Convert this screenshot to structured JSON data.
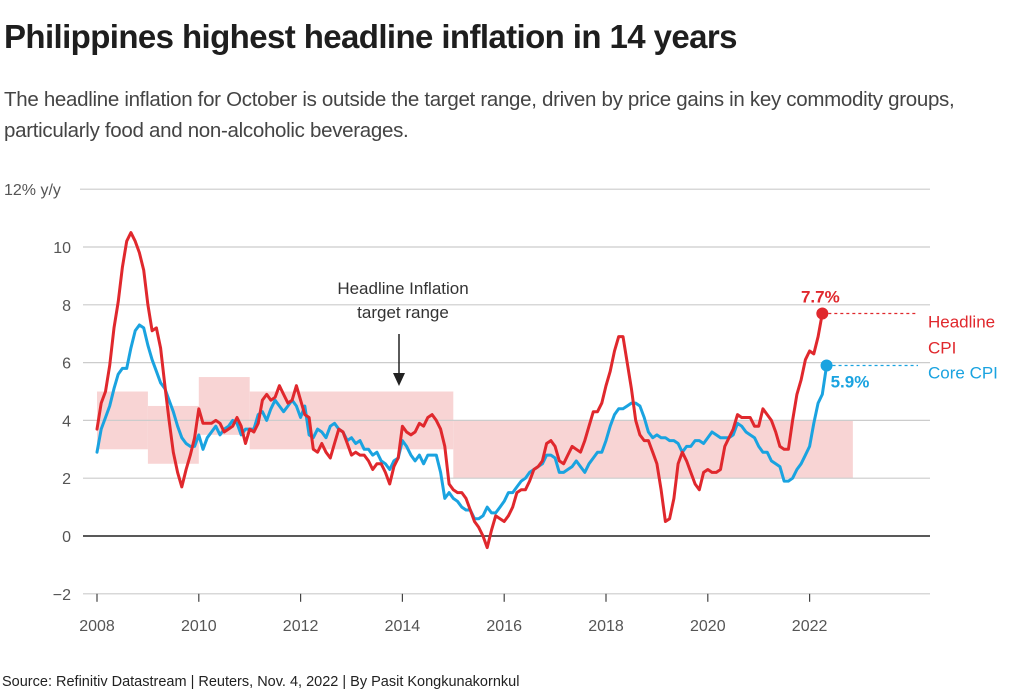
{
  "header": {
    "title": "Philippines highest headline inflation in 14 years",
    "subtitle": "The headline inflation for October is outside the target range, driven by price gains in key commodity groups, particularly food and non-alcoholic beverages."
  },
  "footer": {
    "source": "Source: Refinitiv Datastream | Reuters, Nov. 4, 2022 | By Pasit Kongkunakornkul"
  },
  "colors": {
    "headline": "#e0282d",
    "core": "#1aa3e0",
    "band": "#f8d4d4",
    "grid": "#cccccc",
    "zero_line": "#222222",
    "annotation": "#333333"
  },
  "chart_data": {
    "type": "line",
    "title": "Philippines highest headline inflation in 14 years",
    "xlabel": "",
    "ylabel": "% y/y",
    "y_unit_label": "12% y/y",
    "ylim": [
      -2,
      12
    ],
    "xlim": [
      2008,
      2024
    ],
    "grid": true,
    "x_ticks": [
      2008,
      2010,
      2012,
      2014,
      2016,
      2018,
      2020,
      2022
    ],
    "y_ticks": [
      -2,
      0,
      2,
      4,
      6,
      8,
      10,
      12
    ],
    "y_tick_labels": [
      "−2",
      "0",
      "2",
      "4",
      "6",
      "8",
      "10",
      "12% y/y"
    ],
    "legend_placement": "right",
    "annotation": {
      "line1": "Headline Inflation",
      "line2": "target range",
      "arrow_target_x": 2014,
      "arrow_target_y": 5
    },
    "target_bands": [
      {
        "from": 2008.0,
        "to": 2009.0,
        "low": 3.0,
        "high": 5.0
      },
      {
        "from": 2009.0,
        "to": 2010.0,
        "low": 2.5,
        "high": 4.5
      },
      {
        "from": 2010.0,
        "to": 2011.0,
        "low": 3.5,
        "high": 5.5
      },
      {
        "from": 2011.0,
        "to": 2015.0,
        "low": 3.0,
        "high": 5.0
      },
      {
        "from": 2015.0,
        "to": 2022.85,
        "low": 2.0,
        "high": 4.0
      }
    ],
    "series": [
      {
        "name": "Headline CPI",
        "label_line1": "Headline",
        "label_line2": "CPI",
        "end_value_label": "7.7%",
        "end_value": 7.7,
        "start": 2008.0,
        "step": 0.0833333,
        "values": [
          3.7,
          4.6,
          5.0,
          5.9,
          7.2,
          8.1,
          9.3,
          10.2,
          10.5,
          10.2,
          9.8,
          9.2,
          8.0,
          7.1,
          7.2,
          6.5,
          5.2,
          4.0,
          2.9,
          2.2,
          1.7,
          2.3,
          2.8,
          3.4,
          4.4,
          3.9,
          3.9,
          3.9,
          4.0,
          3.9,
          3.6,
          3.7,
          3.8,
          4.1,
          3.8,
          3.2,
          3.7,
          3.6,
          3.9,
          4.7,
          4.9,
          4.7,
          4.8,
          5.2,
          4.9,
          4.6,
          4.7,
          5.2,
          4.7,
          4.2,
          4.1,
          3.0,
          2.9,
          3.2,
          2.9,
          2.7,
          3.2,
          3.7,
          3.6,
          3.2,
          2.8,
          2.9,
          2.8,
          2.8,
          2.6,
          2.3,
          2.5,
          2.5,
          2.2,
          1.8,
          2.4,
          2.7,
          3.8,
          3.6,
          3.5,
          3.6,
          3.9,
          3.8,
          4.1,
          4.2,
          4.0,
          3.7,
          3.1,
          1.8,
          1.6,
          1.5,
          1.5,
          1.3,
          0.9,
          0.5,
          0.3,
          0.0,
          -0.4,
          0.2,
          0.7,
          0.6,
          0.5,
          0.7,
          1.0,
          1.5,
          1.6,
          1.6,
          1.9,
          2.3,
          2.4,
          2.6,
          3.2,
          3.3,
          3.1,
          2.6,
          2.5,
          2.8,
          3.1,
          3.0,
          2.9,
          3.3,
          3.8,
          4.3,
          4.3,
          4.6,
          5.2,
          5.7,
          6.4,
          6.9,
          6.9,
          6.0,
          5.1,
          4.0,
          3.5,
          3.3,
          3.3,
          2.9,
          2.5,
          1.6,
          0.5,
          0.6,
          1.3,
          2.5,
          2.9,
          2.6,
          2.2,
          1.8,
          1.6,
          2.2,
          2.3,
          2.2,
          2.2,
          2.3,
          3.1,
          3.4,
          3.7,
          4.2,
          4.1,
          4.1,
          4.1,
          3.8,
          3.8,
          4.4,
          4.2,
          4.0,
          3.6,
          3.1,
          3.0,
          3.0,
          4.0,
          4.9,
          5.4,
          6.1,
          6.4,
          6.3,
          6.9,
          7.7
        ]
      },
      {
        "name": "Core CPI",
        "label_line1": "Core CPI",
        "end_value_label": "5.9%",
        "end_value": 5.9,
        "start": 2008.0,
        "step": 0.0833333,
        "values": [
          2.9,
          3.7,
          4.1,
          4.5,
          5.1,
          5.6,
          5.8,
          5.8,
          6.5,
          7.1,
          7.3,
          7.2,
          6.6,
          6.1,
          5.7,
          5.3,
          5.1,
          4.7,
          4.3,
          3.8,
          3.4,
          3.2,
          3.1,
          3.1,
          3.5,
          3.0,
          3.4,
          3.6,
          3.8,
          3.5,
          3.7,
          3.8,
          4.0,
          3.9,
          3.5,
          3.7,
          3.7,
          3.7,
          4.2,
          4.3,
          4.0,
          4.4,
          4.7,
          4.5,
          4.3,
          4.5,
          4.7,
          4.5,
          4.1,
          4.5,
          3.5,
          3.4,
          3.7,
          3.6,
          3.4,
          3.8,
          3.9,
          3.7,
          3.6,
          3.3,
          3.4,
          3.2,
          3.3,
          3.0,
          3.0,
          2.8,
          2.9,
          2.6,
          2.5,
          2.3,
          2.6,
          2.7,
          3.3,
          3.1,
          2.8,
          2.6,
          2.8,
          2.5,
          2.8,
          2.8,
          2.8,
          2.2,
          1.3,
          1.5,
          1.3,
          1.2,
          1.0,
          0.9,
          0.9,
          0.6,
          0.6,
          0.7,
          1.0,
          0.8,
          0.8,
          1.0,
          1.2,
          1.5,
          1.5,
          1.7,
          1.9,
          2.0,
          2.2,
          2.3,
          2.4,
          2.5,
          2.8,
          2.8,
          2.7,
          2.2,
          2.2,
          2.3,
          2.4,
          2.6,
          2.4,
          2.2,
          2.5,
          2.7,
          2.9,
          2.9,
          3.3,
          3.8,
          4.2,
          4.4,
          4.4,
          4.5,
          4.6,
          4.6,
          4.5,
          4.1,
          3.6,
          3.4,
          3.5,
          3.4,
          3.4,
          3.3,
          3.3,
          3.2,
          2.9,
          3.1,
          3.1,
          3.3,
          3.3,
          3.2,
          3.4,
          3.6,
          3.5,
          3.4,
          3.4,
          3.4,
          3.5,
          3.9,
          3.8,
          3.6,
          3.5,
          3.4,
          3.1,
          2.9,
          2.9,
          2.6,
          2.5,
          2.4,
          1.9,
          1.9,
          2.0,
          2.3,
          2.5,
          2.8,
          3.1,
          3.9,
          4.6,
          4.9,
          5.9
        ]
      }
    ]
  }
}
